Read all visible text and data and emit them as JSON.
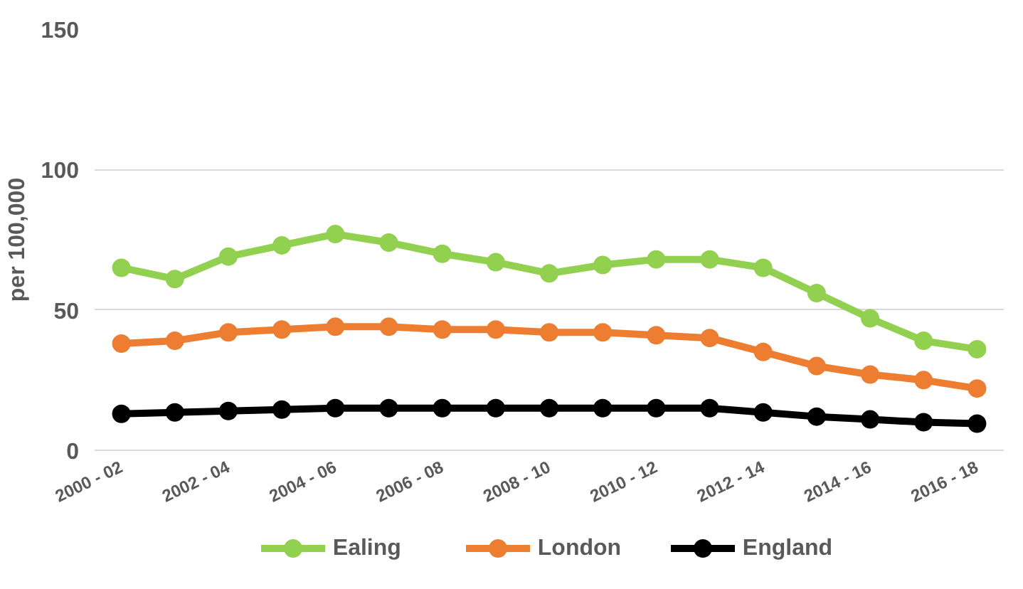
{
  "chart_data": {
    "type": "line",
    "ylabel": "per 100,000",
    "categories": [
      "2000 - 02",
      null,
      "2002 - 04",
      null,
      "2004 - 06",
      null,
      "2006 - 08",
      null,
      "2008 - 10",
      null,
      "2010 - 12",
      null,
      "2012 - 14",
      null,
      "2014 - 16",
      null,
      "2016 - 18"
    ],
    "series": [
      {
        "name": "Ealing",
        "color": "#92d050",
        "values": [
          65,
          61,
          69,
          73,
          77,
          74,
          70,
          67,
          63,
          66,
          68,
          68,
          65,
          56,
          47,
          39,
          36
        ]
      },
      {
        "name": "London",
        "color": "#ed7d31",
        "values": [
          38,
          39,
          42,
          43,
          44,
          44,
          43,
          43,
          42,
          42,
          41,
          40,
          35,
          30,
          27,
          25,
          22
        ]
      },
      {
        "name": "England",
        "color": "#000000",
        "values": [
          13,
          13.5,
          14,
          14.5,
          15,
          15,
          15,
          15,
          15,
          15,
          15,
          15,
          13.5,
          12,
          11,
          10,
          9.5
        ]
      }
    ],
    "ylim": [
      0,
      150
    ],
    "yticks": [
      0,
      50,
      100,
      150
    ],
    "grid": "y",
    "legend": "bottom",
    "marker": "circle",
    "line_style": "solid"
  }
}
